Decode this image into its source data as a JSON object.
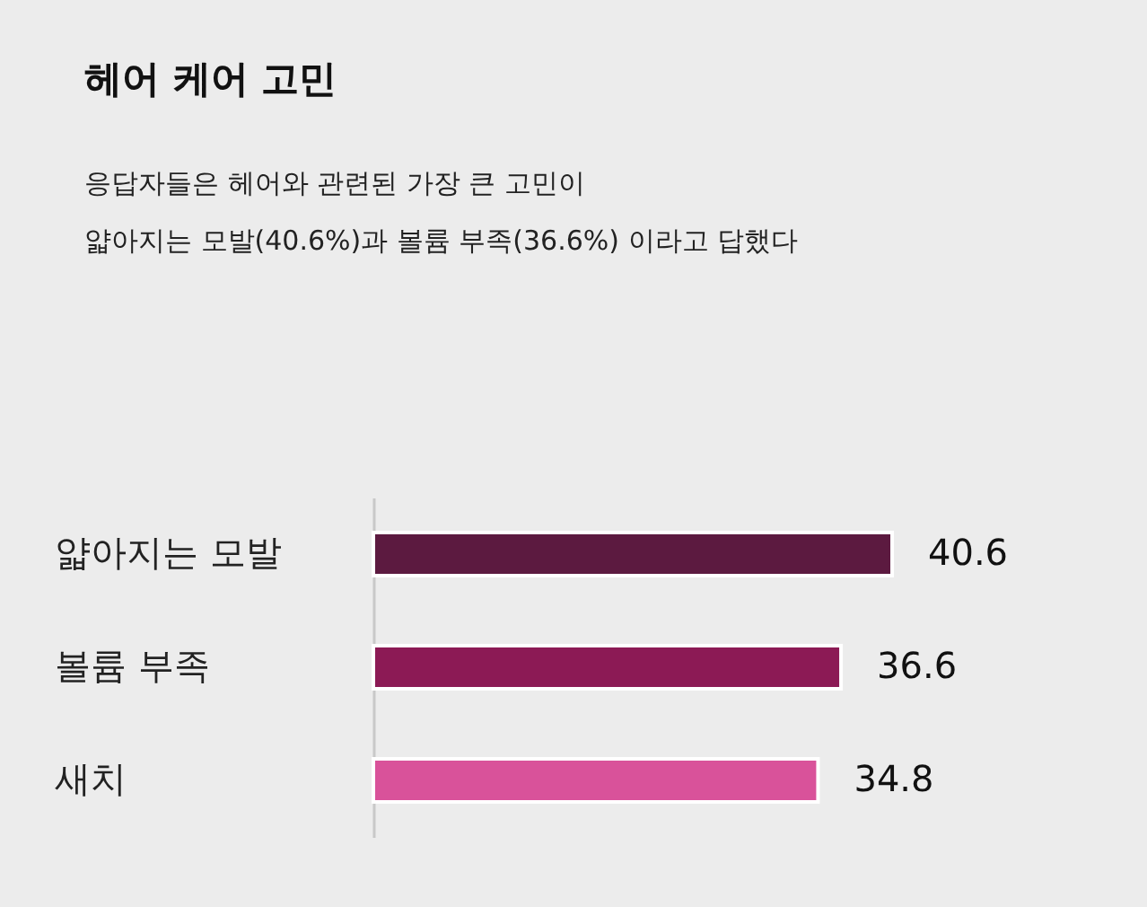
{
  "chart_data": {
    "type": "bar",
    "orientation": "horizontal",
    "title": "헤어 케어 고민",
    "subtitle": "응답자들은 헤어와 관련된 가장 큰 고민이\n얇아지는 모발(40.6%)과 볼륨 부족(36.6%) 이라고 답했다",
    "categories": [
      "얇아지는 모발",
      "볼륨 부족",
      "새치"
    ],
    "values": [
      40.6,
      36.6,
      34.8
    ],
    "colors": [
      "#5c1a40",
      "#8c1a55",
      "#d9529a"
    ],
    "data_labels": true,
    "grid": false
  }
}
